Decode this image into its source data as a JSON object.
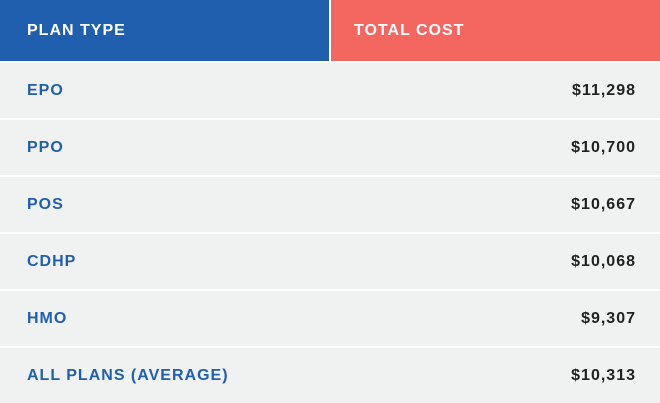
{
  "colors": {
    "header_left_bg": "#1f5fad",
    "header_right_bg": "#f46761",
    "plan_text": "#1f5fad",
    "cost_text": "#222222",
    "row_bg": "#f0f1f1"
  },
  "chart_data": {
    "type": "table",
    "columns": [
      "PLAN TYPE",
      "TOTAL COST"
    ],
    "rows": [
      {
        "plan": "EPO",
        "cost": "$11,298"
      },
      {
        "plan": "PPO",
        "cost": "$10,700"
      },
      {
        "plan": "POS",
        "cost": "$10,667"
      },
      {
        "plan": "CDHP",
        "cost": "$10,068"
      },
      {
        "plan": "HMO",
        "cost": "$9,307"
      },
      {
        "plan": "ALL PLANS (AVERAGE)",
        "cost": "$10,313"
      }
    ]
  }
}
